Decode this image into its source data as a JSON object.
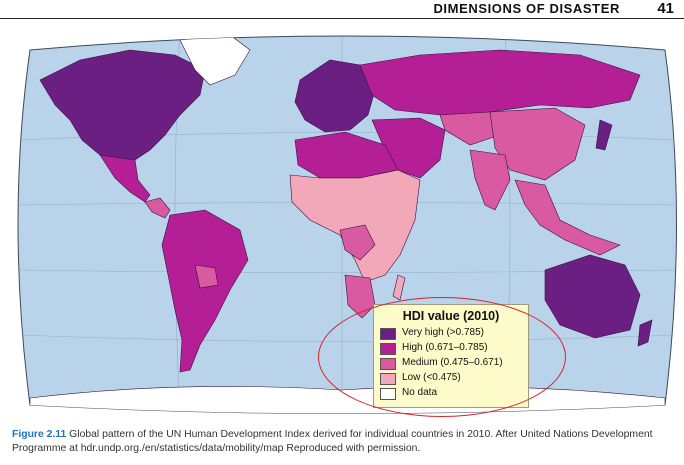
{
  "header": {
    "running_title": "DIMENSIONS OF DISASTER",
    "page_number": "41"
  },
  "map": {
    "legend": {
      "title": "HDI value (2010)",
      "items": [
        {
          "label": "Very high (>0.785)",
          "color": "#6b1f82"
        },
        {
          "label": "High (0.671–0.785)",
          "color": "#b51f96"
        },
        {
          "label": "Medium (0.475–0.671)",
          "color": "#d95aa1"
        },
        {
          "label": "Low (<0.475)",
          "color": "#f2a8b8"
        },
        {
          "label": "No data",
          "color": "#ffffff"
        }
      ]
    },
    "ocean_color": "#b9d3ea",
    "highlight_color": "#d9222a"
  },
  "caption": {
    "label": "Figure 2.11",
    "text": " Global pattern of the UN Human Development Index derived for individual countries in 2010. After United Nations Development Programme at hdr.undp.org./en/statistics/data/mobility/map Reproduced with permission."
  }
}
